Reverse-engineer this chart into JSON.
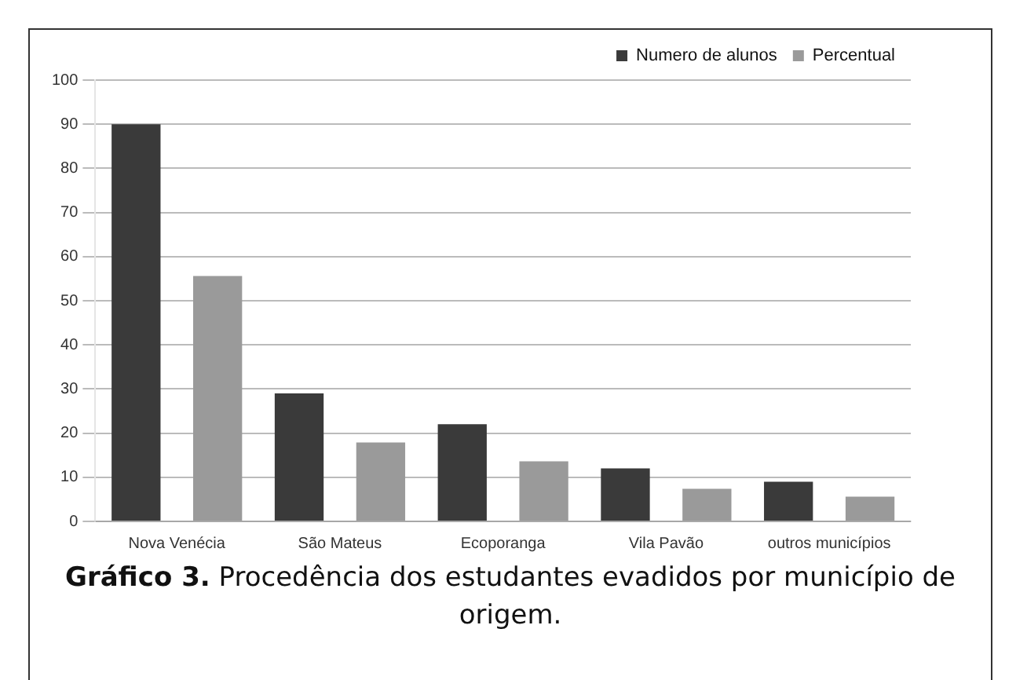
{
  "chart_data": {
    "type": "bar",
    "title": "Gráfico 3.",
    "subtitle": "Procedência dos estudantes evadidos por município de origem.",
    "categories": [
      "Nova Venécia",
      "São Mateus",
      "Ecoporanga",
      "Vila Pavão",
      "outros municípios"
    ],
    "series": [
      {
        "name": "Numero de alunos",
        "color": "#3a3a3a",
        "values": [
          90,
          29,
          22,
          12,
          9
        ]
      },
      {
        "name": "Percentual",
        "color": "#9a9a9a",
        "values": [
          55.6,
          17.9,
          13.6,
          7.4,
          5.6
        ]
      }
    ],
    "ylim": [
      0,
      100
    ],
    "yticks": [
      0,
      10,
      20,
      30,
      40,
      50,
      60,
      70,
      80,
      90,
      100
    ],
    "grid": "y",
    "legend": "top right"
  }
}
